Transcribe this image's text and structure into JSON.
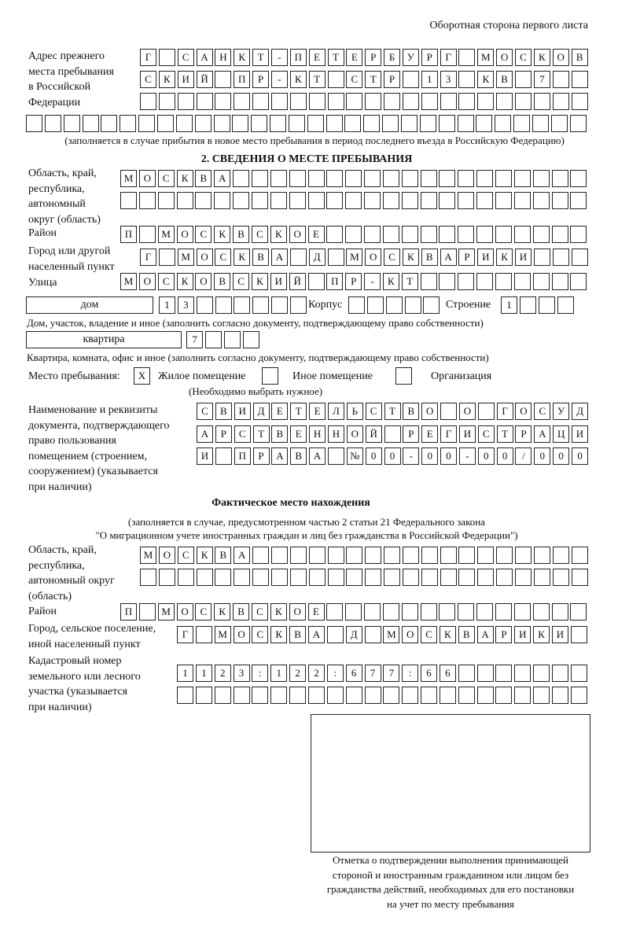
{
  "page_header": "Оборотная сторона первого листа",
  "prev_address": {
    "label": "Адрес прежнего\nместа пребывания\nв Российской\nФедерации",
    "rows": [
      [
        "Г",
        "",
        "С",
        "А",
        "Н",
        "К",
        "Т",
        "-",
        "П",
        "Е",
        "Т",
        "Е",
        "Р",
        "Б",
        "У",
        "Р",
        "Г",
        "",
        "М",
        "О",
        "С",
        "К",
        "О",
        "В"
      ],
      [
        "С",
        "К",
        "И",
        "Й",
        "",
        "П",
        "Р",
        "-",
        "К",
        "Т",
        "",
        "С",
        "Т",
        "Р",
        "",
        "1",
        "3",
        "",
        "К",
        "В",
        "",
        "7"
      ],
      [],
      []
    ],
    "note": "(заполняется в случае прибытия в новое место пребывания в период последнего въезда в Российскую Федерацию)"
  },
  "section2": {
    "title": "2. СВЕДЕНИЯ О МЕСТЕ ПРЕБЫВАНИЯ",
    "region": {
      "label": "Область, край,\nреспублика,\nавтономный\nокруг (область)",
      "rows": [
        [
          "М",
          "О",
          "С",
          "К",
          "В",
          "А"
        ],
        []
      ]
    },
    "district": {
      "label": "Район",
      "rows": [
        [
          "П",
          "",
          "М",
          "О",
          "С",
          "К",
          "В",
          "С",
          "К",
          "О",
          "Е"
        ]
      ]
    },
    "city": {
      "label": "Город или другой\nнаселенный пункт",
      "rows": [
        [
          "Г",
          "",
          "М",
          "О",
          "С",
          "К",
          "В",
          "А",
          "",
          "Д",
          "",
          "М",
          "О",
          "С",
          "К",
          "В",
          "А",
          "Р",
          "И",
          "К",
          "И"
        ]
      ]
    },
    "street": {
      "label": "Улица",
      "rows": [
        [
          "М",
          "О",
          "С",
          "К",
          "О",
          "В",
          "С",
          "К",
          "И",
          "Й",
          "",
          "П",
          "Р",
          "-",
          "К",
          "Т"
        ]
      ]
    },
    "house": {
      "type": "дом",
      "rows": [
        [
          "1",
          "3"
        ]
      ],
      "korpus_label": "Корпус",
      "korpus": {
        "rows": [
          []
        ]
      },
      "stroenie_label": "Строение",
      "stroenie": {
        "rows": [
          [
            "1"
          ]
        ]
      },
      "note": "Дом, участок, владение и иное (заполнить согласно документу, подтверждающему право собственности)"
    },
    "apartment": {
      "type": "квартира",
      "rows": [
        [
          "7"
        ]
      ],
      "note": "Квартира, комната, офис и иное (заполнить согласно документу, подтверждающему право собственности)"
    },
    "stay_place": {
      "label": "Место пребывания:",
      "options": [
        {
          "label": "Жилое помещение",
          "mark": "X",
          "checked": true
        },
        {
          "label": "Иное помещение",
          "mark": "",
          "checked": false
        },
        {
          "label": "Организация",
          "mark": "",
          "checked": false
        }
      ],
      "note": "(Необходимо выбрать нужное)"
    },
    "document": {
      "label": "Наименование и реквизиты\nдокумента, подтверждающего\nправо пользования\nпомещением (строением,\nсооружением) (указывается\nпри наличии)",
      "rows": [
        [
          "С",
          "В",
          "И",
          "Д",
          "Е",
          "Т",
          "Е",
          "Л",
          "Ь",
          "С",
          "Т",
          "В",
          "О",
          "",
          "О",
          "",
          "Г",
          "О",
          "С",
          "У",
          "Д"
        ],
        [
          "А",
          "Р",
          "С",
          "Т",
          "В",
          "Е",
          "Н",
          "Н",
          "О",
          "Й",
          "",
          "Р",
          "Е",
          "Г",
          "И",
          "С",
          "Т",
          "Р",
          "А",
          "Ц",
          "И"
        ],
        [
          "И",
          "",
          "П",
          "Р",
          "А",
          "В",
          "А",
          "",
          "№",
          "0",
          "0",
          "-",
          "0",
          "0",
          "-",
          "0",
          "0",
          "/",
          "0",
          "0",
          "0"
        ]
      ]
    }
  },
  "actual": {
    "title": "Фактическое место нахождения",
    "note1": "(заполняется в случае, предусмотренном частью 2 статьи 21 Федерального закона",
    "note2": "\"О миграционном учете иностранных граждан и лиц без гражданства в Российской Федерации\")",
    "region": {
      "label": "Область, край,\nреспублика,\nавтономный округ\n(область)",
      "rows": [
        [
          "М",
          "О",
          "С",
          "К",
          "В",
          "А"
        ],
        []
      ]
    },
    "district": {
      "label": "Район",
      "rows": [
        [
          "П",
          "",
          "М",
          "О",
          "С",
          "К",
          "В",
          "С",
          "К",
          "О",
          "Е"
        ]
      ]
    },
    "city": {
      "label": "Город, сельское поселение,\nиной населенный пункт",
      "rows": [
        [
          "Г",
          "",
          "М",
          "О",
          "С",
          "К",
          "В",
          "А",
          "",
          "Д",
          "",
          "М",
          "О",
          "С",
          "К",
          "В",
          "А",
          "Р",
          "И",
          "К",
          "И"
        ]
      ]
    },
    "cadastral": {
      "label": "Кадастровый номер\nземельного или лесного\nучастка (указывается\nпри наличии)",
      "rows": [
        [
          "1",
          "1",
          "2",
          "3",
          ":",
          "1",
          "2",
          "2",
          ":",
          "6",
          "7",
          "7",
          ":",
          "6",
          "6"
        ],
        []
      ]
    }
  },
  "confirmation": {
    "caption": "Отметка о подтверждении выполнения принимающей\nстороной и иностранным гражданином или лицом без\nгражданства действий, необходимых для его постановки\nна учет по месту пребывания"
  }
}
